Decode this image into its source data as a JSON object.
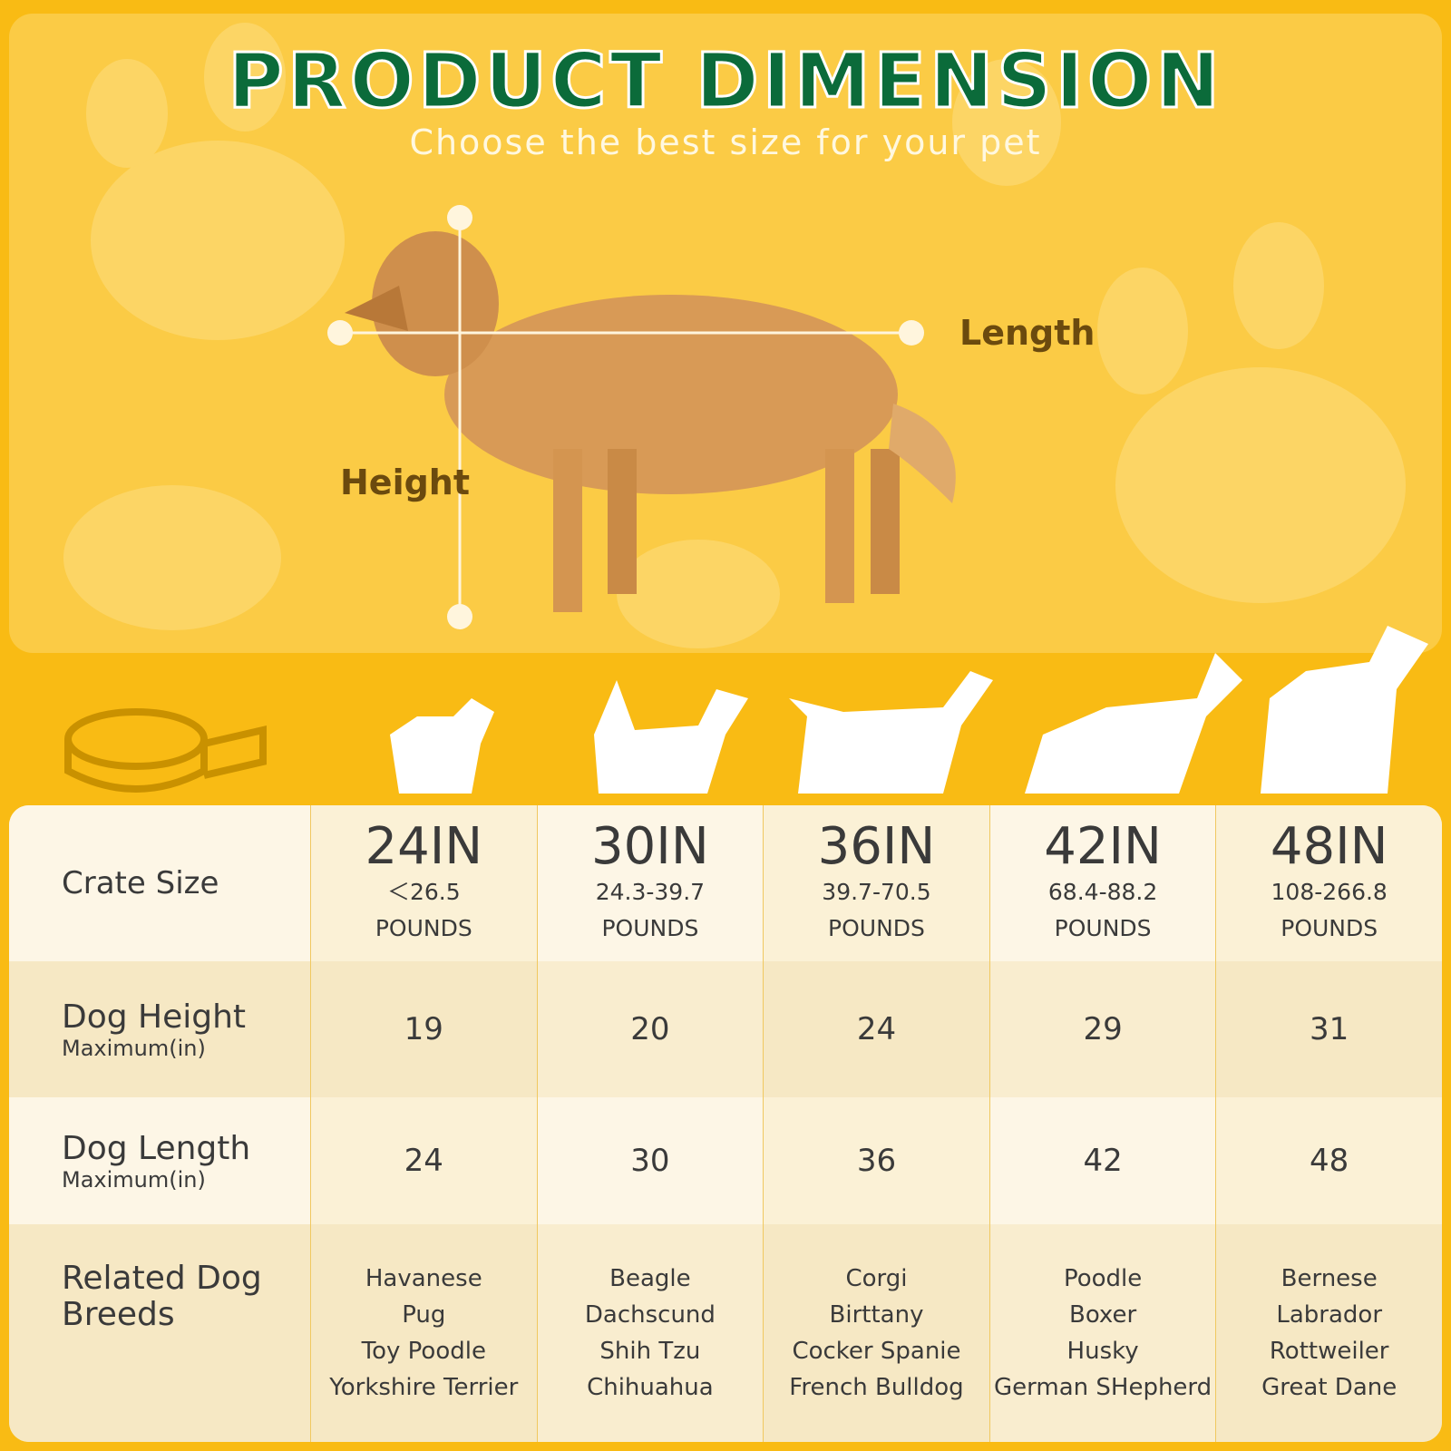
{
  "header": {
    "title": "PRODUCT DIMENSION",
    "subtitle": "Choose the best size for your pet"
  },
  "diagram": {
    "length_label": "Length",
    "height_label": "Height"
  },
  "table": {
    "row_labels": {
      "crate": "Crate Size",
      "height": "Dog Height",
      "height_unit": "Maximum(in)",
      "length": "Dog Length",
      "length_unit": "Maximum(in)",
      "breeds": "Related Dog Breeds"
    },
    "columns": [
      {
        "size": "24IN",
        "weight": "＜26.5",
        "unit": "POUNDS",
        "height": 19,
        "length": 24,
        "breeds": [
          "Havanese",
          "Pug",
          "Toy Poodle",
          "Yorkshire Terrier"
        ]
      },
      {
        "size": "30IN",
        "weight": "24.3-39.7",
        "unit": "POUNDS",
        "height": 20,
        "length": 30,
        "breeds": [
          "Beagle",
          "Dachscund",
          "Shih Tzu",
          "Chihuahua"
        ]
      },
      {
        "size": "36IN",
        "weight": "39.7-70.5",
        "unit": "POUNDS",
        "height": 24,
        "length": 36,
        "breeds": [
          "Corgi",
          "Birttany",
          "Cocker Spanie",
          "French Bulldog"
        ]
      },
      {
        "size": "42IN",
        "weight": "68.4-88.2",
        "unit": "POUNDS",
        "height": 29,
        "length": 42,
        "breeds": [
          "Poodle",
          "Boxer",
          "Husky",
          "German SHepherd"
        ]
      },
      {
        "size": "48IN",
        "weight": "108-266.8",
        "unit": "POUNDS",
        "height": 31,
        "length": 48,
        "breeds": [
          "Bernese",
          "Labrador",
          "Rottweiler",
          "Great Dane"
        ]
      }
    ]
  }
}
